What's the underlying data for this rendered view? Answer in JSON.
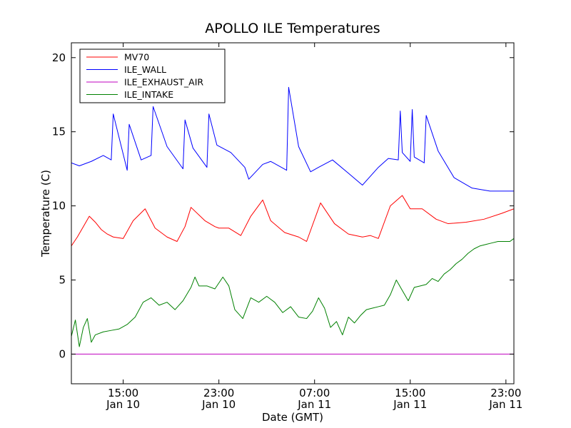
{
  "chart_data": {
    "type": "line",
    "title": "APOLLO ILE Temperatures",
    "xlabel": "Date (GMT)",
    "ylabel": "Temperature (C)",
    "x_unit": "hours",
    "xlim": [
      "Jan 10 10:40",
      "Jan 11 23:40"
    ],
    "ylim": [
      -2,
      21
    ],
    "yticks": [
      0,
      5,
      10,
      15,
      20
    ],
    "xticks": [
      {
        "time": "Jan 10 15:00",
        "label_time": "15:00",
        "label_date": "Jan 10"
      },
      {
        "time": "Jan 10 23:00",
        "label_time": "23:00",
        "label_date": "Jan 10"
      },
      {
        "time": "Jan 11 07:00",
        "label_time": "07:00",
        "label_date": "Jan 11"
      },
      {
        "time": "Jan 11 15:00",
        "label_time": "15:00",
        "label_date": "Jan 11"
      },
      {
        "time": "Jan 11 23:00",
        "label_time": "23:00",
        "label_date": "Jan 11"
      }
    ],
    "grid": false,
    "legend_position": "top-left",
    "series": [
      {
        "name": "MV70",
        "color": "#ff0000",
        "x": [
          "Jan 10 10:40",
          "Jan 10 11:10",
          "Jan 10 11:40",
          "Jan 10 12:10",
          "Jan 10 12:40",
          "Jan 10 13:10",
          "Jan 10 13:40",
          "Jan 10 14:10",
          "Jan 10 15:00",
          "Jan 10 15:50",
          "Jan 10 16:50",
          "Jan 10 17:40",
          "Jan 10 18:40",
          "Jan 10 19:30",
          "Jan 10 20:10",
          "Jan 10 20:40",
          "Jan 10 21:50",
          "Jan 10 22:40",
          "Jan 10 23:00",
          "Jan 10 23:50",
          "Jan 11 00:50",
          "Jan 11 01:40",
          "Jan 11 02:40",
          "Jan 11 03:20",
          "Jan 11 04:30",
          "Jan 11 05:40",
          "Jan 11 06:20",
          "Jan 11 07:30",
          "Jan 11 08:40",
          "Jan 11 09:50",
          "Jan 11 11:00",
          "Jan 11 11:40",
          "Jan 11 12:20",
          "Jan 11 13:20",
          "Jan 11 14:20",
          "Jan 11 15:00",
          "Jan 11 16:00",
          "Jan 11 17:10",
          "Jan 11 18:10",
          "Jan 11 19:40",
          "Jan 11 21:10",
          "Jan 11 22:40",
          "Jan 11 23:40"
        ],
        "values": [
          7.3,
          7.9,
          8.6,
          9.3,
          8.9,
          8.4,
          8.1,
          7.9,
          7.8,
          9.0,
          9.8,
          8.5,
          7.9,
          7.6,
          8.6,
          9.9,
          9.0,
          8.6,
          8.5,
          8.5,
          8.0,
          9.3,
          10.4,
          9.0,
          8.2,
          7.9,
          7.6,
          10.2,
          8.8,
          8.1,
          7.9,
          8.0,
          7.8,
          10.0,
          10.7,
          9.8,
          9.8,
          9.1,
          8.8,
          8.9,
          9.1,
          9.5,
          9.8
        ]
      },
      {
        "name": "ILE_WALL",
        "color": "#0000ff",
        "x": [
          "Jan 10 10:40",
          "Jan 10 11:20",
          "Jan 10 12:20",
          "Jan 10 13:20",
          "Jan 10 14:00",
          "Jan 10 14:10",
          "Jan 10 15:20",
          "Jan 10 15:30",
          "Jan 10 16:30",
          "Jan 10 17:20",
          "Jan 10 17:30",
          "Jan 10 18:40",
          "Jan 10 20:00",
          "Jan 10 20:10",
          "Jan 10 20:50",
          "Jan 10 22:00",
          "Jan 10 22:10",
          "Jan 10 22:50",
          "Jan 11 00:00",
          "Jan 11 01:10",
          "Jan 11 01:30",
          "Jan 11 02:40",
          "Jan 11 03:20",
          "Jan 11 04:40",
          "Jan 11 04:50",
          "Jan 11 05:40",
          "Jan 11 06:40",
          "Jan 11 07:20",
          "Jan 11 08:30",
          "Jan 11 09:50",
          "Jan 11 11:00",
          "Jan 11 12:20",
          "Jan 11 13:10",
          "Jan 11 14:00",
          "Jan 11 14:10",
          "Jan 11 14:20",
          "Jan 11 15:00",
          "Jan 11 15:10",
          "Jan 11 15:20",
          "Jan 11 16:10",
          "Jan 11 16:20",
          "Jan 11 17:20",
          "Jan 11 18:40",
          "Jan 11 20:10",
          "Jan 11 21:40",
          "Jan 11 23:40"
        ],
        "values": [
          12.9,
          12.7,
          13.0,
          13.4,
          13.1,
          16.2,
          12.4,
          15.5,
          13.1,
          13.4,
          16.7,
          14.0,
          12.5,
          15.8,
          13.9,
          12.6,
          16.2,
          14.1,
          13.6,
          12.6,
          11.8,
          12.8,
          13.0,
          12.4,
          18.0,
          14.0,
          12.3,
          12.6,
          13.1,
          12.2,
          11.4,
          12.6,
          13.2,
          13.1,
          16.4,
          13.6,
          13.0,
          16.5,
          13.3,
          12.9,
          16.1,
          13.7,
          11.9,
          11.2,
          11.0,
          11.0
        ]
      },
      {
        "name": "ILE_EXHAUST_AIR",
        "color": "#bf00bf",
        "x": [
          "Jan 10 10:40",
          "Jan 11 23:40"
        ],
        "values": [
          0.0,
          0.0
        ]
      },
      {
        "name": "ILE_INTAKE",
        "color": "#008000",
        "x": [
          "Jan 10 10:40",
          "Jan 10 11:00",
          "Jan 10 11:20",
          "Jan 10 11:40",
          "Jan 10 12:00",
          "Jan 10 12:20",
          "Jan 10 12:40",
          "Jan 10 13:20",
          "Jan 10 14:00",
          "Jan 10 14:40",
          "Jan 10 15:20",
          "Jan 10 16:00",
          "Jan 10 16:40",
          "Jan 10 17:20",
          "Jan 10 18:00",
          "Jan 10 18:40",
          "Jan 10 19:20",
          "Jan 10 20:00",
          "Jan 10 20:40",
          "Jan 10 21:00",
          "Jan 10 21:20",
          "Jan 10 22:00",
          "Jan 10 22:40",
          "Jan 10 23:20",
          "Jan 10 23:50",
          "Jan 11 00:20",
          "Jan 11 01:00",
          "Jan 11 01:40",
          "Jan 11 02:20",
          "Jan 11 03:00",
          "Jan 11 03:40",
          "Jan 11 04:20",
          "Jan 11 05:00",
          "Jan 11 05:40",
          "Jan 11 06:20",
          "Jan 11 06:50",
          "Jan 11 07:20",
          "Jan 11 07:50",
          "Jan 11 08:20",
          "Jan 11 08:50",
          "Jan 11 09:20",
          "Jan 11 09:50",
          "Jan 11 10:20",
          "Jan 11 10:50",
          "Jan 11 11:20",
          "Jan 11 11:50",
          "Jan 11 12:20",
          "Jan 11 12:50",
          "Jan 11 13:20",
          "Jan 11 13:50",
          "Jan 11 14:20",
          "Jan 11 14:50",
          "Jan 11 15:20",
          "Jan 11 15:50",
          "Jan 11 16:20",
          "Jan 11 16:50",
          "Jan 11 17:20",
          "Jan 11 17:50",
          "Jan 11 18:20",
          "Jan 11 18:50",
          "Jan 11 19:20",
          "Jan 11 19:50",
          "Jan 11 20:20",
          "Jan 11 20:50",
          "Jan 11 21:20",
          "Jan 11 21:50",
          "Jan 11 22:20",
          "Jan 11 22:50",
          "Jan 11 23:20",
          "Jan 11 23:40"
        ],
        "values": [
          1.2,
          2.3,
          0.5,
          1.8,
          2.4,
          0.8,
          1.3,
          1.5,
          1.6,
          1.7,
          2.0,
          2.5,
          3.5,
          3.8,
          3.3,
          3.5,
          3.0,
          3.6,
          4.5,
          5.2,
          4.6,
          4.6,
          4.4,
          5.2,
          4.6,
          3.0,
          2.4,
          3.8,
          3.5,
          3.9,
          3.5,
          2.8,
          3.2,
          2.5,
          2.4,
          2.9,
          3.8,
          3.1,
          1.8,
          2.2,
          1.3,
          2.5,
          2.1,
          2.6,
          3.0,
          3.1,
          3.2,
          3.3,
          4.0,
          5.0,
          4.3,
          3.6,
          4.5,
          4.6,
          4.7,
          5.1,
          4.9,
          5.4,
          5.7,
          6.1,
          6.4,
          6.8,
          7.1,
          7.3,
          7.4,
          7.5,
          7.6,
          7.6,
          7.6,
          7.8
        ]
      }
    ]
  }
}
